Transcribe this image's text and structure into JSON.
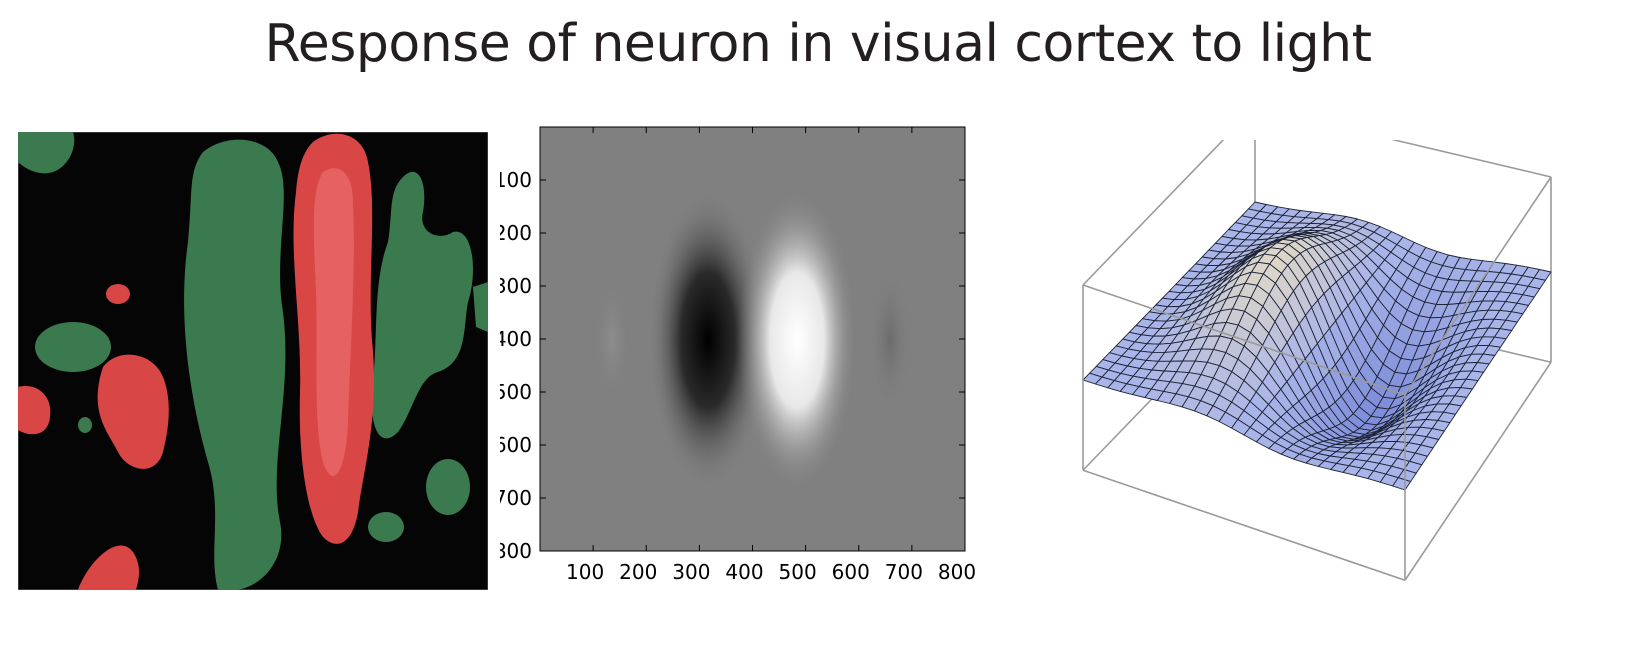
{
  "slide": {
    "title": "Response of neuron in visual cortex to light"
  },
  "middle_plot": {
    "y_ticks": [
      "100",
      "200",
      "300",
      "400",
      "500",
      "600",
      "700",
      "800"
    ],
    "x_ticks": [
      "100",
      "200",
      "300",
      "400",
      "500",
      "600",
      "700",
      "800"
    ]
  },
  "colors": {
    "green": "#3b7a4e",
    "red": "#d94646",
    "surface": "#a9b4e8"
  }
}
